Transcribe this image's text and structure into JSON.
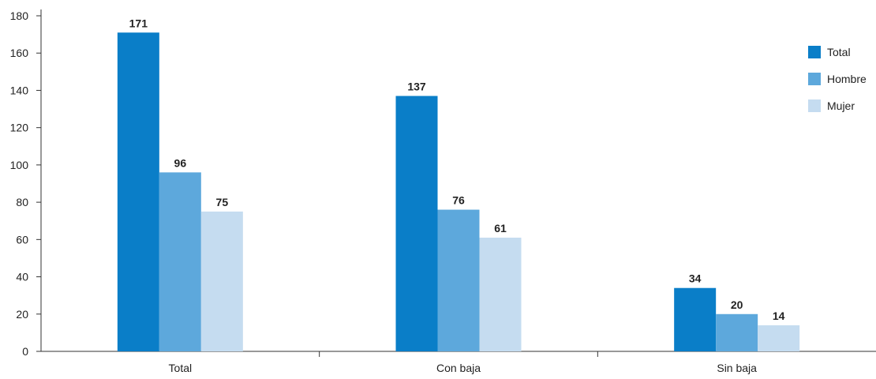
{
  "chart_data": {
    "type": "bar",
    "title": "",
    "xlabel": "",
    "ylabel": "",
    "categories": [
      "Total",
      "Con baja",
      "Sin baja"
    ],
    "series": [
      {
        "name": "Total",
        "values": [
          171,
          137,
          34
        ],
        "color": "#0a7ec8"
      },
      {
        "name": "Hombre",
        "values": [
          96,
          76,
          20
        ],
        "color": "#5da8dc"
      },
      {
        "name": "Mujer",
        "values": [
          75,
          61,
          14
        ],
        "color": "#c5dcf0"
      }
    ],
    "ylim": [
      0,
      180
    ],
    "yticks": [
      0,
      20,
      40,
      60,
      80,
      100,
      120,
      140,
      160,
      180
    ],
    "grid": false,
    "legend_position": "top-right",
    "data_labels": true
  }
}
